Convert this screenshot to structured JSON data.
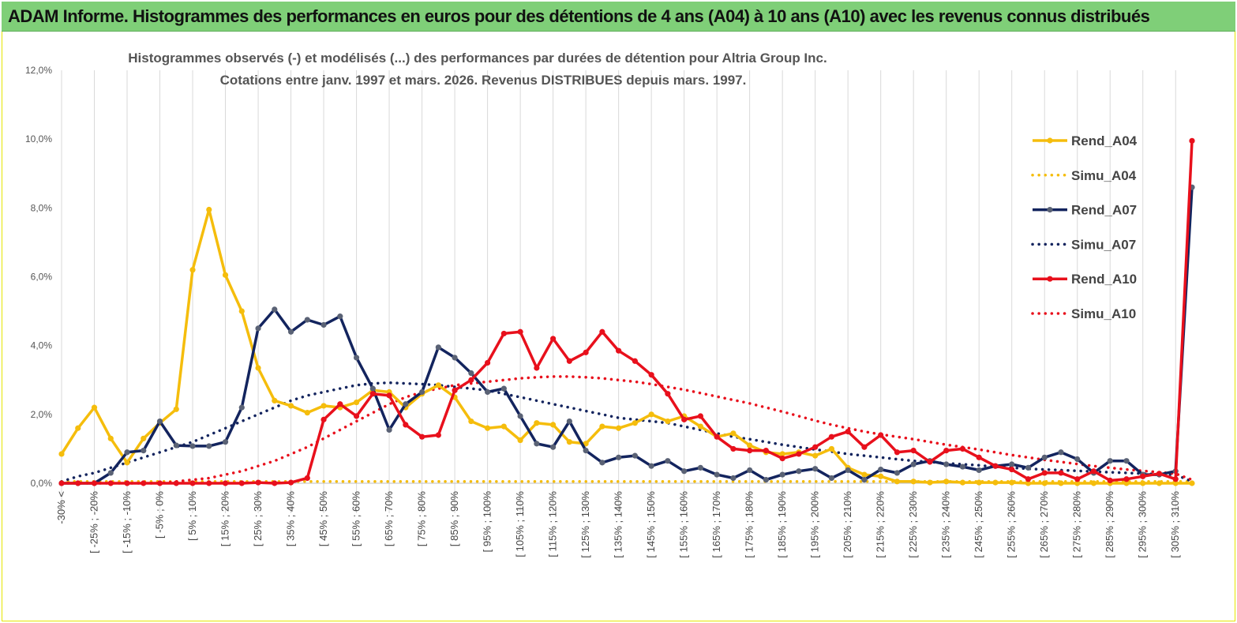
{
  "banner": {
    "title": "ADAM Informe. Histogrammes des performances en euros pour des détentions de 4 ans (A04) à 10 ans (A10) avec les revenus connus distribués"
  },
  "chart_data": {
    "type": "line",
    "title_line1": "Histogrammes observés (-) et modélisés (...) des performances par durées de détention pour Altria Group Inc.",
    "title_line2": "Cotations entre janv. 1997 et mars. 2026. Revenus DISTRIBUES depuis mars. 1997.",
    "ylim": [
      0,
      12
    ],
    "y_ticks": [
      "0,0%",
      "2,0%",
      "4,0%",
      "6,0%",
      "8,0%",
      "10,0%",
      "12,0%"
    ],
    "y_tick_values": [
      0,
      2,
      4,
      6,
      8,
      10,
      12
    ],
    "n_points": 70,
    "x_tick_labels": [
      "-30% <",
      "[ -25% ; -20%",
      "[ -15% ; -10%",
      "[ -5% ; 0%",
      "[ 5% ; 10%",
      "[ 15% ; 20%",
      "[ 25% ; 30%",
      "[ 35% ; 40%",
      "[ 45% ; 50%",
      "[ 55% ; 60%",
      "[ 65% ; 70%",
      "[ 75% ; 80%",
      "[ 85% ; 90%",
      "[ 95% ; 100%",
      "[ 105% ; 110%",
      "[ 115% ; 120%",
      "[ 125% ; 130%",
      "[ 135% ; 140%",
      "[ 145% ; 150%",
      "[ 155% ; 160%",
      "[ 165% ; 170%",
      "[ 175% ; 180%",
      "[ 185% ; 190%",
      "[ 195% ; 200%",
      "[ 205% ; 210%",
      "[ 215% ; 220%",
      "[ 225% ; 230%",
      "[ 235% ; 240%",
      "[ 245% ; 250%",
      "[ 255% ; 260%",
      "[ 265% ; 270%",
      "[ 275% ; 280%",
      "[ 285% ; 290%",
      "[ 295% ; 300%",
      "[ 305% ; 310%"
    ],
    "x_tick_indices": [
      0,
      2,
      4,
      6,
      8,
      10,
      12,
      14,
      16,
      18,
      20,
      22,
      24,
      26,
      28,
      30,
      32,
      34,
      36,
      38,
      40,
      42,
      44,
      46,
      48,
      50,
      52,
      54,
      56,
      58,
      60,
      62,
      64,
      66,
      68
    ],
    "series": [
      {
        "name": "Rend_A04",
        "style": "solid",
        "color": "#f5bd0c",
        "markers": true,
        "values": [
          0.85,
          1.6,
          2.2,
          1.3,
          0.6,
          1.3,
          1.75,
          2.15,
          6.2,
          7.95,
          6.05,
          5.0,
          3.35,
          2.4,
          2.25,
          2.05,
          2.25,
          2.2,
          2.35,
          2.7,
          2.65,
          2.2,
          2.6,
          2.85,
          2.5,
          1.8,
          1.6,
          1.65,
          1.25,
          1.75,
          1.7,
          1.2,
          1.15,
          1.65,
          1.6,
          1.75,
          2.0,
          1.8,
          1.95,
          1.65,
          1.35,
          1.45,
          1.1,
          0.9,
          0.85,
          0.9,
          0.8,
          1.0,
          0.45,
          0.25,
          0.2,
          0.05,
          0.05,
          0.02,
          0.05,
          0.02,
          0.02,
          0.02,
          0.02,
          0.0,
          0.0,
          0.0,
          0.0,
          0.0,
          0.0,
          0.0,
          0.0,
          0.0,
          0.0,
          0.0
        ]
      },
      {
        "name": "Simu_A04",
        "style": "dotted",
        "color": "#f5bd0c",
        "markers": false,
        "values": [
          0.05,
          0.05,
          0.05,
          0.05,
          0.05,
          0.05,
          0.05,
          0.05,
          0.05,
          0.05,
          0.05,
          0.05,
          0.05,
          0.05,
          0.05,
          0.05,
          0.05,
          0.05,
          0.05,
          0.05,
          0.05,
          0.05,
          0.05,
          0.05,
          0.05,
          0.05,
          0.05,
          0.05,
          0.05,
          0.05,
          0.05,
          0.05,
          0.05,
          0.05,
          0.05,
          0.05,
          0.05,
          0.05,
          0.05,
          0.05,
          0.05,
          0.05,
          0.05,
          0.05,
          0.05,
          0.05,
          0.05,
          0.05,
          0.05,
          0.05,
          0.05,
          0.05,
          0.05,
          0.05,
          0.05,
          0.05,
          0.05,
          0.05,
          0.05,
          0.05,
          0.05,
          0.05,
          0.05,
          0.05,
          0.05,
          0.05,
          0.05,
          0.05,
          0.05,
          0.05
        ]
      },
      {
        "name": "Rend_A07",
        "style": "solid",
        "color": "#13245e",
        "markers": true,
        "values": [
          0.0,
          0.0,
          0.0,
          0.3,
          0.9,
          0.95,
          1.8,
          1.1,
          1.08,
          1.08,
          1.2,
          2.2,
          4.5,
          5.05,
          4.4,
          4.75,
          4.6,
          4.85,
          3.65,
          2.75,
          1.55,
          2.3,
          2.65,
          3.95,
          3.65,
          3.2,
          2.65,
          2.75,
          1.95,
          1.15,
          1.05,
          1.8,
          0.95,
          0.6,
          0.75,
          0.8,
          0.5,
          0.65,
          0.35,
          0.45,
          0.25,
          0.15,
          0.38,
          0.1,
          0.25,
          0.35,
          0.42,
          0.15,
          0.38,
          0.1,
          0.4,
          0.3,
          0.55,
          0.65,
          0.55,
          0.48,
          0.38,
          0.5,
          0.55,
          0.45,
          0.75,
          0.9,
          0.7,
          0.3,
          0.65,
          0.65,
          0.25,
          0.25,
          0.35,
          8.6
        ]
      },
      {
        "name": "Simu_A07",
        "style": "dotted",
        "color": "#13245e",
        "markers": false,
        "values": [
          0.05,
          0.2,
          0.3,
          0.45,
          0.6,
          0.75,
          0.9,
          1.05,
          1.2,
          1.4,
          1.6,
          1.8,
          2.0,
          2.2,
          2.4,
          2.55,
          2.65,
          2.75,
          2.85,
          2.9,
          2.92,
          2.9,
          2.88,
          2.85,
          2.8,
          2.75,
          2.7,
          2.6,
          2.5,
          2.4,
          2.3,
          2.2,
          2.1,
          2.0,
          1.9,
          1.85,
          1.8,
          1.75,
          1.65,
          1.55,
          1.45,
          1.35,
          1.28,
          1.2,
          1.12,
          1.05,
          0.98,
          0.92,
          0.85,
          0.8,
          0.75,
          0.7,
          0.65,
          0.62,
          0.58,
          0.55,
          0.52,
          0.48,
          0.45,
          0.42,
          0.4,
          0.38,
          0.36,
          0.34,
          0.32,
          0.3,
          0.28,
          0.26,
          0.25,
          0.05
        ]
      },
      {
        "name": "Rend_A10",
        "style": "solid",
        "color": "#e8101c",
        "markers": true,
        "values": [
          0.0,
          0.0,
          0.0,
          0.0,
          0.0,
          0.0,
          0.0,
          0.0,
          0.0,
          0.0,
          0.0,
          0.0,
          0.02,
          0.0,
          0.02,
          0.15,
          1.85,
          2.3,
          1.95,
          2.6,
          2.55,
          1.7,
          1.35,
          1.4,
          2.7,
          3.0,
          3.5,
          4.35,
          4.4,
          3.35,
          4.2,
          3.55,
          3.8,
          4.4,
          3.85,
          3.55,
          3.15,
          2.6,
          1.85,
          1.95,
          1.35,
          1.0,
          0.95,
          0.95,
          0.72,
          0.85,
          1.05,
          1.35,
          1.5,
          1.05,
          1.4,
          0.9,
          0.95,
          0.62,
          0.95,
          1.0,
          0.75,
          0.5,
          0.4,
          0.12,
          0.3,
          0.3,
          0.12,
          0.35,
          0.08,
          0.12,
          0.2,
          0.28,
          0.12,
          9.95
        ]
      },
      {
        "name": "Simu_A10",
        "style": "dotted",
        "color": "#e8101c",
        "markers": false,
        "values": [
          0.0,
          0.0,
          0.0,
          0.0,
          0.0,
          0.0,
          0.0,
          0.05,
          0.1,
          0.15,
          0.25,
          0.35,
          0.5,
          0.65,
          0.85,
          1.05,
          1.3,
          1.55,
          1.8,
          2.05,
          2.3,
          2.5,
          2.65,
          2.75,
          2.85,
          2.9,
          2.95,
          3.0,
          3.05,
          3.08,
          3.1,
          3.1,
          3.08,
          3.05,
          3.0,
          2.95,
          2.88,
          2.8,
          2.72,
          2.62,
          2.52,
          2.42,
          2.32,
          2.2,
          2.08,
          1.95,
          1.82,
          1.7,
          1.6,
          1.5,
          1.42,
          1.35,
          1.28,
          1.2,
          1.12,
          1.05,
          0.98,
          0.9,
          0.82,
          0.75,
          0.68,
          0.62,
          0.56,
          0.5,
          0.45,
          0.4,
          0.36,
          0.32,
          0.28,
          0.1
        ]
      }
    ],
    "legend": [
      {
        "label": "Rend_A04",
        "color": "#f5bd0c",
        "style": "solid"
      },
      {
        "label": "Simu_A04",
        "color": "#f5bd0c",
        "style": "dotted"
      },
      {
        "label": "Rend_A07",
        "color": "#13245e",
        "style": "solid"
      },
      {
        "label": "Simu_A07",
        "color": "#13245e",
        "style": "dotted"
      },
      {
        "label": "Rend_A10",
        "color": "#e8101c",
        "style": "solid"
      },
      {
        "label": "Simu_A10",
        "color": "#e8101c",
        "style": "dotted"
      }
    ],
    "grid": "vertical",
    "legend_position": "right"
  }
}
